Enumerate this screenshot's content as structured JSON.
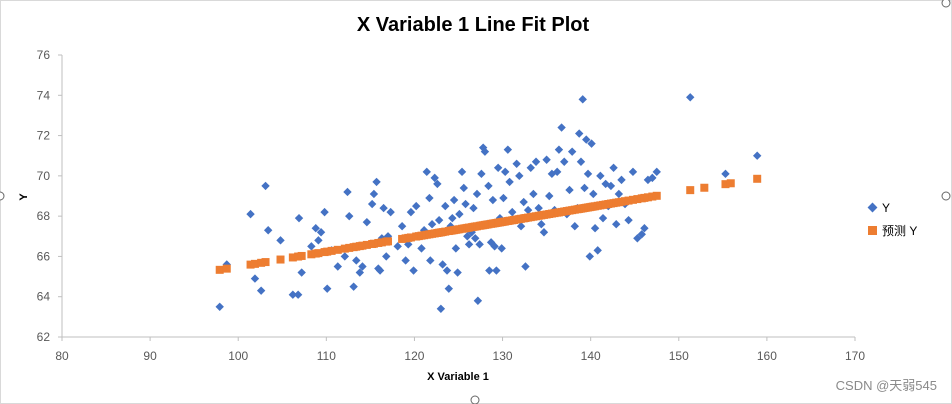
{
  "chart_data": {
    "type": "scatter",
    "title": "X Variable 1 Line Fit  Plot",
    "xlabel": "X Variable 1",
    "ylabel": "Y",
    "xlim": [
      80,
      170
    ],
    "ylim": [
      62,
      76
    ],
    "xticks": [
      "80",
      "90",
      "100",
      "110",
      "120",
      "130",
      "140",
      "150",
      "160",
      "170"
    ],
    "yticks": [
      "62",
      "64",
      "66",
      "68",
      "70",
      "72",
      "74",
      "76"
    ],
    "grid": false,
    "legend_position": "right",
    "fit_line": {
      "slope": 0.0741,
      "intercept": 58.08
    },
    "series": [
      {
        "name": "Y",
        "color": "#4472C4",
        "marker": "diamond",
        "points": [
          [
            97.9,
            63.5
          ],
          [
            98.7,
            65.6
          ],
          [
            101.4,
            68.1
          ],
          [
            101.9,
            64.9
          ],
          [
            102.6,
            64.3
          ],
          [
            103.1,
            69.5
          ],
          [
            103.4,
            67.3
          ],
          [
            104.8,
            66.8
          ],
          [
            106.2,
            64.1
          ],
          [
            106.8,
            64.1
          ],
          [
            106.9,
            67.9
          ],
          [
            107.2,
            65.2
          ],
          [
            108.3,
            66.5
          ],
          [
            108.8,
            67.4
          ],
          [
            109.1,
            66.8
          ],
          [
            109.4,
            67.2
          ],
          [
            109.8,
            68.2
          ],
          [
            110.1,
            64.4
          ],
          [
            110.6,
            66.3
          ],
          [
            111.3,
            65.5
          ],
          [
            112.1,
            66.0
          ],
          [
            112.4,
            69.2
          ],
          [
            112.6,
            68.0
          ],
          [
            113.1,
            64.5
          ],
          [
            113.4,
            65.8
          ],
          [
            113.8,
            65.2
          ],
          [
            114.1,
            65.5
          ],
          [
            114.6,
            67.7
          ],
          [
            115.2,
            68.6
          ],
          [
            115.4,
            69.1
          ],
          [
            115.7,
            69.7
          ],
          [
            115.9,
            65.4
          ],
          [
            116.1,
            65.3
          ],
          [
            116.3,
            66.9
          ],
          [
            116.5,
            68.4
          ],
          [
            116.8,
            66.0
          ],
          [
            117.0,
            67.0
          ],
          [
            117.3,
            68.2
          ],
          [
            118.1,
            66.5
          ],
          [
            118.6,
            67.5
          ],
          [
            119.0,
            65.8
          ],
          [
            119.3,
            66.6
          ],
          [
            119.6,
            68.2
          ],
          [
            119.9,
            65.3
          ],
          [
            120.2,
            68.5
          ],
          [
            120.5,
            67.0
          ],
          [
            120.8,
            66.4
          ],
          [
            121.1,
            67.3
          ],
          [
            121.4,
            70.2
          ],
          [
            121.7,
            68.9
          ],
          [
            121.8,
            65.8
          ],
          [
            122.0,
            67.6
          ],
          [
            122.3,
            69.9
          ],
          [
            122.6,
            69.6
          ],
          [
            122.8,
            67.8
          ],
          [
            123.0,
            63.4
          ],
          [
            123.2,
            65.6
          ],
          [
            123.5,
            68.5
          ],
          [
            123.7,
            65.3
          ],
          [
            123.9,
            64.4
          ],
          [
            124.1,
            67.5
          ],
          [
            124.3,
            67.9
          ],
          [
            124.5,
            68.8
          ],
          [
            124.7,
            66.4
          ],
          [
            124.9,
            65.2
          ],
          [
            125.1,
            68.1
          ],
          [
            125.4,
            70.2
          ],
          [
            125.6,
            69.4
          ],
          [
            125.8,
            68.6
          ],
          [
            126.0,
            67.0
          ],
          [
            126.2,
            66.6
          ],
          [
            126.5,
            67.2
          ],
          [
            126.7,
            68.4
          ],
          [
            126.9,
            66.9
          ],
          [
            127.1,
            69.1
          ],
          [
            127.2,
            63.8
          ],
          [
            127.4,
            66.6
          ],
          [
            127.6,
            70.1
          ],
          [
            127.8,
            71.4
          ],
          [
            128.0,
            71.2
          ],
          [
            128.2,
            67.6
          ],
          [
            128.4,
            69.5
          ],
          [
            128.5,
            65.3
          ],
          [
            128.7,
            66.7
          ],
          [
            128.9,
            68.8
          ],
          [
            129.1,
            66.5
          ],
          [
            129.3,
            65.3
          ],
          [
            129.5,
            70.4
          ],
          [
            129.7,
            67.9
          ],
          [
            129.9,
            66.4
          ],
          [
            130.1,
            68.9
          ],
          [
            130.3,
            70.2
          ],
          [
            130.6,
            71.3
          ],
          [
            130.8,
            69.7
          ],
          [
            131.1,
            68.2
          ],
          [
            131.3,
            67.8
          ],
          [
            131.6,
            70.6
          ],
          [
            131.9,
            70.0
          ],
          [
            132.1,
            67.5
          ],
          [
            132.4,
            68.7
          ],
          [
            132.6,
            65.5
          ],
          [
            132.9,
            68.3
          ],
          [
            133.2,
            70.4
          ],
          [
            133.5,
            69.1
          ],
          [
            133.8,
            70.7
          ],
          [
            134.1,
            68.4
          ],
          [
            134.4,
            67.6
          ],
          [
            134.7,
            67.2
          ],
          [
            135.0,
            70.8
          ],
          [
            135.3,
            69.0
          ],
          [
            135.6,
            70.1
          ],
          [
            135.9,
            68.3
          ],
          [
            136.2,
            70.2
          ],
          [
            136.4,
            71.3
          ],
          [
            136.7,
            72.4
          ],
          [
            137.0,
            70.7
          ],
          [
            137.3,
            68.1
          ],
          [
            137.6,
            69.3
          ],
          [
            137.9,
            71.2
          ],
          [
            138.2,
            67.5
          ],
          [
            138.5,
            68.4
          ],
          [
            138.7,
            72.1
          ],
          [
            138.9,
            70.7
          ],
          [
            139.1,
            73.8
          ],
          [
            139.3,
            69.4
          ],
          [
            139.5,
            71.8
          ],
          [
            139.7,
            70.1
          ],
          [
            139.9,
            66.0
          ],
          [
            140.1,
            71.6
          ],
          [
            140.3,
            69.1
          ],
          [
            140.5,
            67.4
          ],
          [
            140.8,
            66.3
          ],
          [
            141.1,
            70.0
          ],
          [
            141.4,
            67.9
          ],
          [
            141.7,
            69.6
          ],
          [
            142.0,
            68.5
          ],
          [
            142.3,
            69.5
          ],
          [
            142.6,
            70.4
          ],
          [
            142.9,
            67.6
          ],
          [
            143.2,
            69.1
          ],
          [
            143.5,
            69.8
          ],
          [
            143.9,
            68.6
          ],
          [
            144.3,
            67.8
          ],
          [
            144.8,
            70.2
          ],
          [
            145.3,
            66.9
          ],
          [
            145.8,
            67.1
          ],
          [
            146.1,
            67.4
          ],
          [
            146.5,
            69.8
          ],
          [
            147.0,
            69.9
          ],
          [
            147.5,
            70.2
          ],
          [
            151.3,
            73.9
          ],
          [
            155.3,
            70.1
          ],
          [
            158.9,
            71.0
          ]
        ]
      },
      {
        "name": "预测 Y",
        "color": "#ED7D31",
        "marker": "square",
        "x_values": [
          97.9,
          98.7,
          101.4,
          101.9,
          102.6,
          103.1,
          104.8,
          106.2,
          106.8,
          107.2,
          108.3,
          108.8,
          109.1,
          109.8,
          110.1,
          110.6,
          111.3,
          112.1,
          112.6,
          113.1,
          113.4,
          113.8,
          114.1,
          114.6,
          115.2,
          115.4,
          115.9,
          116.3,
          116.8,
          117.0,
          118.6,
          119.0,
          119.3,
          119.6,
          120.2,
          120.5,
          120.8,
          121.1,
          121.4,
          121.7,
          122.0,
          122.3,
          122.6,
          122.8,
          123.0,
          123.2,
          123.5,
          123.9,
          124.1,
          124.3,
          124.5,
          124.7,
          124.9,
          125.1,
          125.4,
          125.6,
          125.8,
          126.0,
          126.2,
          126.5,
          126.7,
          126.9,
          127.1,
          127.4,
          127.6,
          127.8,
          128.0,
          128.2,
          128.4,
          128.7,
          128.9,
          129.1,
          129.3,
          129.5,
          129.7,
          129.9,
          130.1,
          130.3,
          130.6,
          130.8,
          131.1,
          131.3,
          131.6,
          131.9,
          132.1,
          132.4,
          132.6,
          132.9,
          133.2,
          133.5,
          133.8,
          134.1,
          134.4,
          134.7,
          135.0,
          135.3,
          135.6,
          135.9,
          136.2,
          136.4,
          136.7,
          137.0,
          137.3,
          137.6,
          137.9,
          138.2,
          138.5,
          138.7,
          138.9,
          139.1,
          139.3,
          139.5,
          139.7,
          139.9,
          140.1,
          140.3,
          140.5,
          140.8,
          141.1,
          141.4,
          141.7,
          142.0,
          142.3,
          142.6,
          142.9,
          143.2,
          143.5,
          143.9,
          144.3,
          144.8,
          145.3,
          145.8,
          146.1,
          146.5,
          147.0,
          147.5,
          151.3,
          152.9,
          155.3,
          155.9,
          158.9
        ]
      }
    ]
  },
  "watermark": "CSDN @天弱545"
}
